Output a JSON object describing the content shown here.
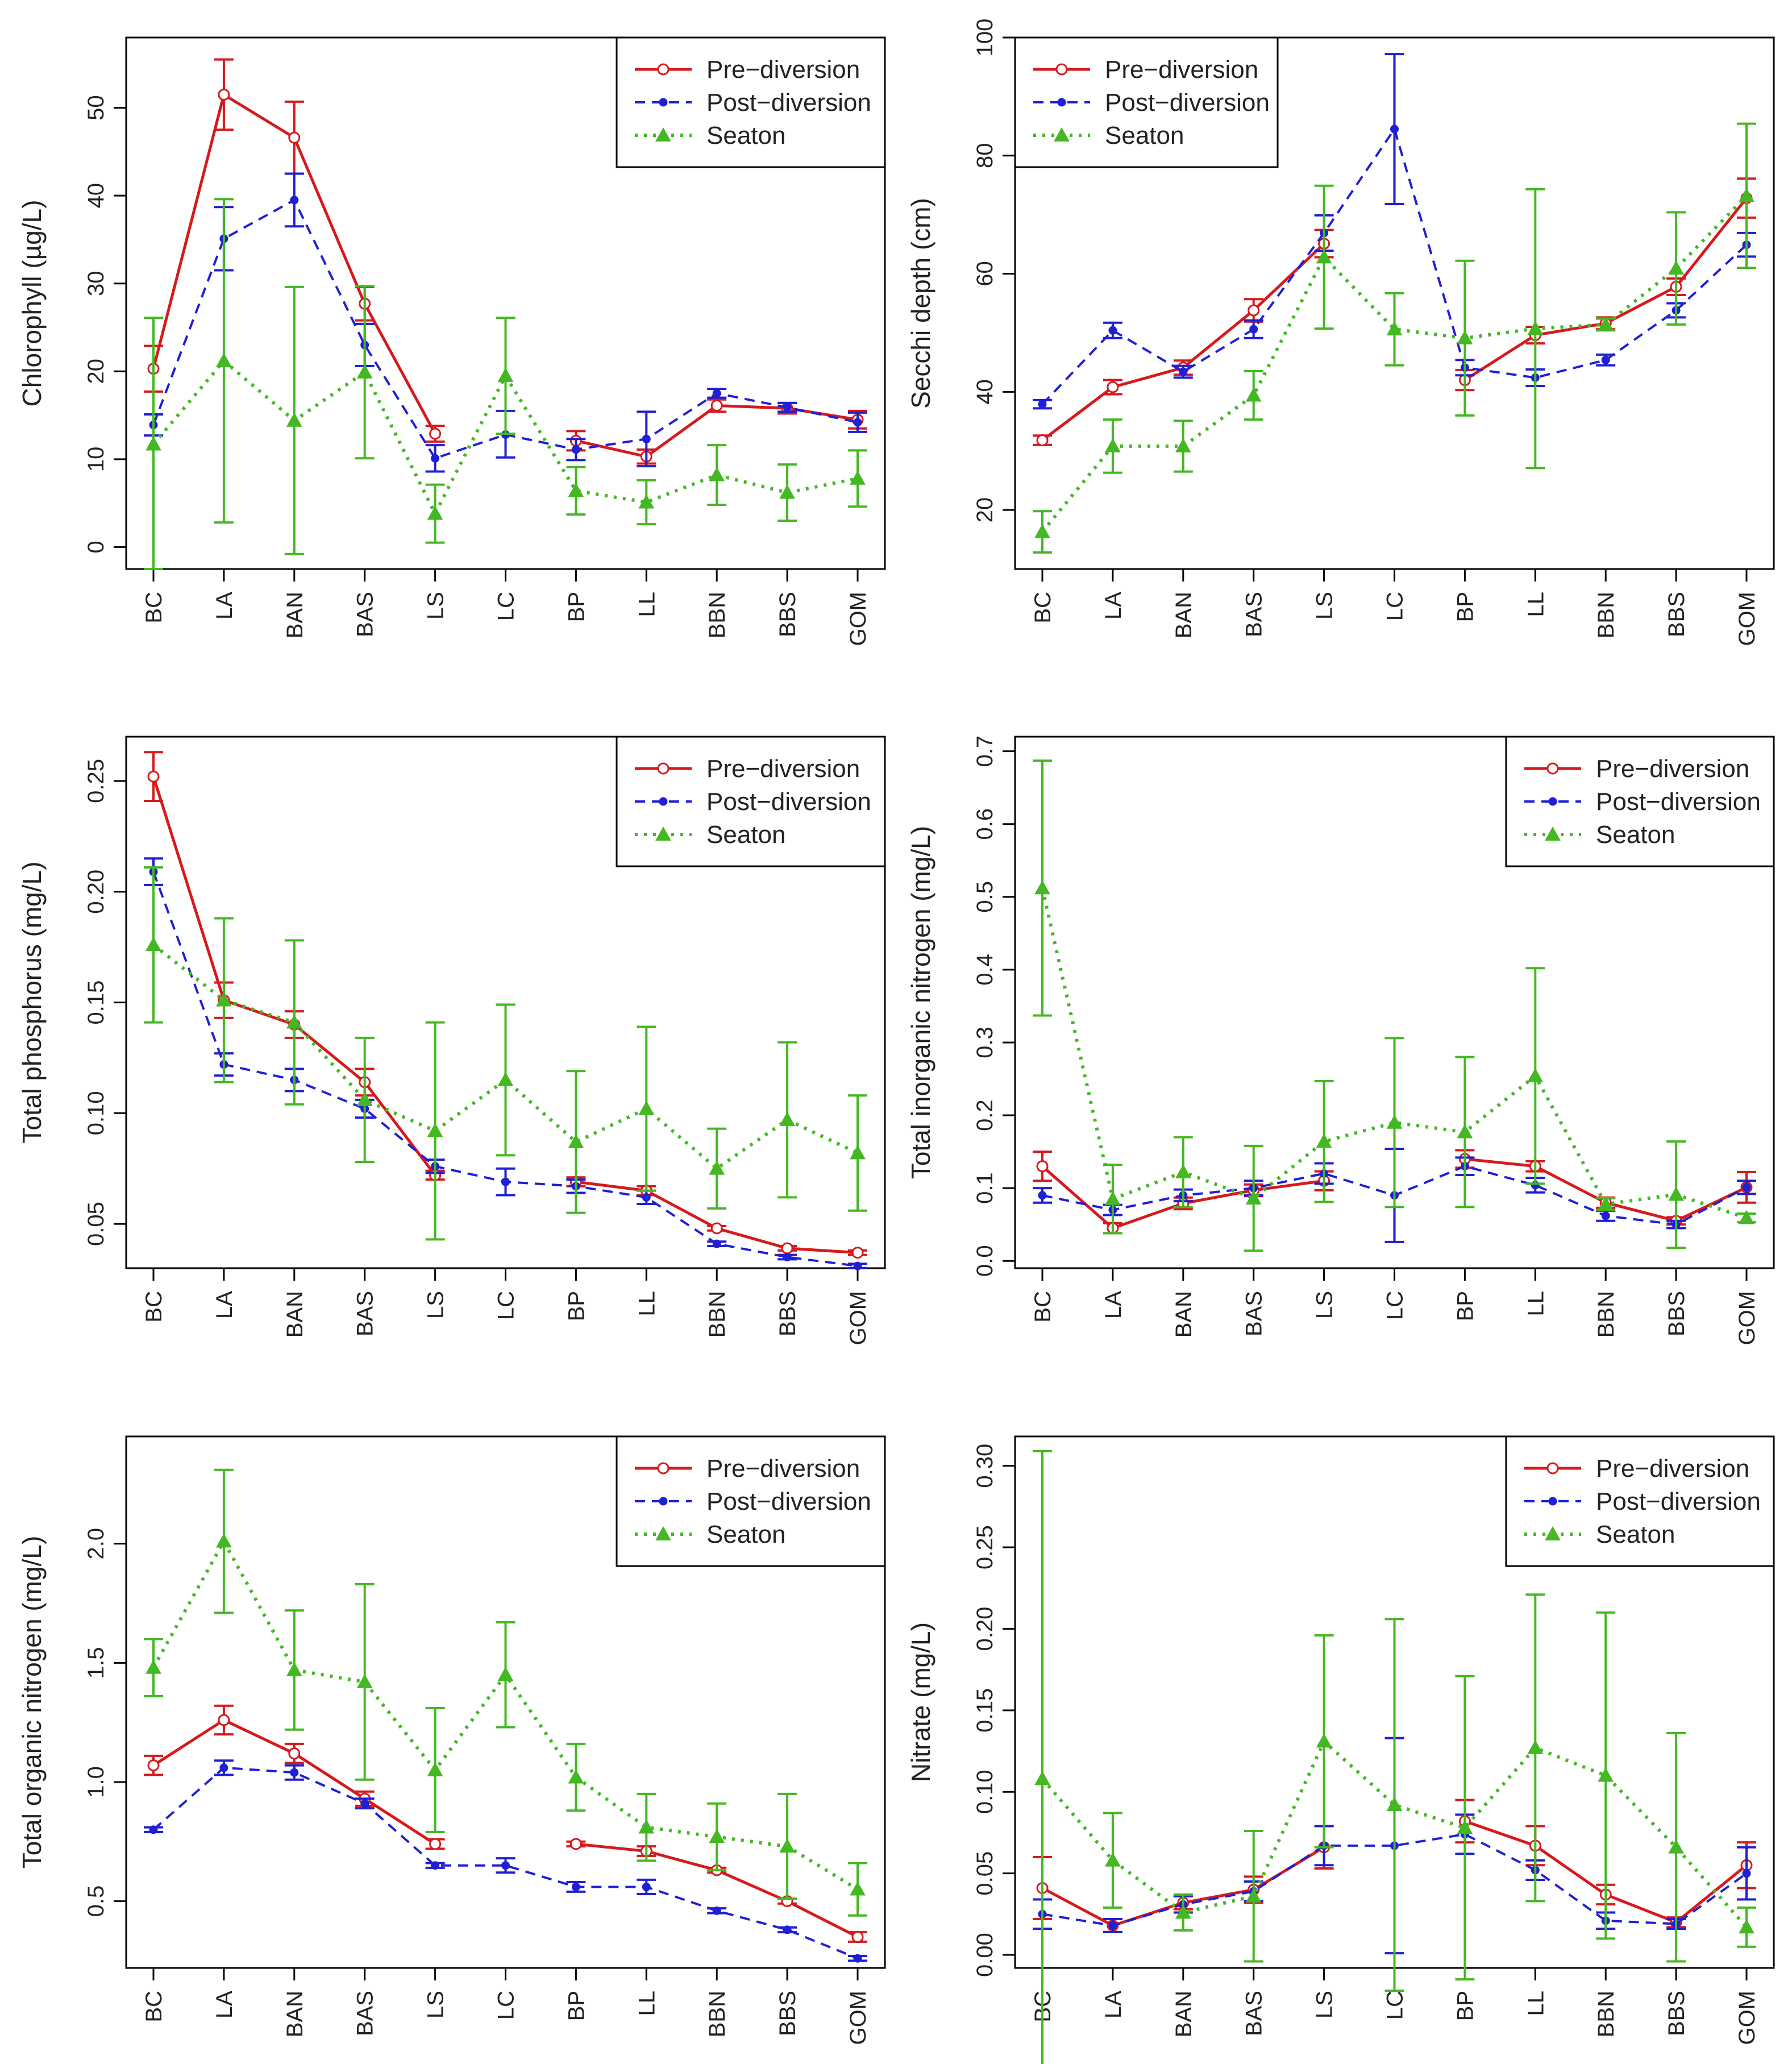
{
  "colors": {
    "pre": "#d7191c",
    "post": "#1f1fd6",
    "seaton": "#44b822"
  },
  "legend_labels": [
    "Pre−diversion",
    "Post−diversion",
    "Seaton"
  ],
  "chart_data": [
    {
      "id": "chlorophyll",
      "type": "line",
      "ylabel": "Chlorophyll (µg/L)",
      "categories": [
        "BC",
        "LA",
        "BAN",
        "BAS",
        "LS",
        "LC",
        "BP",
        "LL",
        "BBN",
        "BBS",
        "GOM"
      ],
      "ylim": [
        -2.5,
        58
      ],
      "yticks": [
        0,
        10,
        20,
        30,
        40,
        50
      ],
      "ytick_labels": [
        "0",
        "10",
        "20",
        "30",
        "40",
        "50"
      ],
      "legend_position": "top-right",
      "series": [
        {
          "name": "Pre−diversion",
          "key": "pre",
          "values": [
            20.3,
            51.5,
            46.6,
            27.7,
            12.9,
            null,
            12.1,
            10.3,
            16.1,
            15.8,
            14.5
          ],
          "lower": [
            17.7,
            47.5,
            42.5,
            25.8,
            12.0,
            null,
            11.0,
            9.5,
            15.4,
            15.2,
            13.5
          ],
          "upper": [
            22.9,
            55.5,
            50.7,
            29.6,
            13.8,
            null,
            13.2,
            11.1,
            16.8,
            16.4,
            15.5
          ]
        },
        {
          "name": "Post−diversion",
          "key": "post",
          "values": [
            13.9,
            35.1,
            39.5,
            23.0,
            10.1,
            12.8,
            11.1,
            12.3,
            17.5,
            15.9,
            14.2
          ],
          "lower": [
            12.7,
            31.5,
            36.5,
            20.6,
            8.6,
            10.2,
            9.9,
            9.2,
            17.0,
            15.4,
            13.1
          ],
          "upper": [
            15.1,
            38.7,
            42.5,
            25.4,
            11.6,
            15.5,
            12.3,
            15.4,
            18.0,
            16.4,
            15.3
          ]
        },
        {
          "name": "Seaton",
          "key": "seaton",
          "values": [
            11.7,
            21.2,
            14.4,
            19.9,
            3.8,
            19.5,
            6.4,
            5.1,
            8.2,
            6.2,
            7.8
          ],
          "lower": [
            -2.5,
            2.8,
            -0.8,
            10.1,
            0.5,
            12.9,
            3.7,
            2.6,
            4.8,
            3.0,
            4.6
          ],
          "upper": [
            26.1,
            39.6,
            29.6,
            29.7,
            7.1,
            26.1,
            9.1,
            7.6,
            11.6,
            9.4,
            11.0
          ]
        }
      ]
    },
    {
      "id": "secchi",
      "type": "line",
      "ylabel": "Secchi depth (cm)",
      "categories": [
        "BC",
        "LA",
        "BAN",
        "BAS",
        "LS",
        "LC",
        "BP",
        "LL",
        "BBN",
        "BBS",
        "GOM"
      ],
      "ylim": [
        10,
        100
      ],
      "yticks": [
        20,
        40,
        60,
        80,
        100
      ],
      "ytick_labels": [
        "20",
        "40",
        "60",
        "80",
        "100"
      ],
      "legend_position": "top-left",
      "series": [
        {
          "name": "Pre−diversion",
          "key": "pre",
          "values": [
            31.8,
            40.8,
            44.1,
            53.8,
            65.1,
            null,
            42.0,
            49.6,
            51.6,
            57.8,
            72.8
          ],
          "lower": [
            31.0,
            39.6,
            42.9,
            51.9,
            62.8,
            null,
            40.3,
            48.2,
            50.6,
            56.4,
            69.5
          ],
          "upper": [
            32.6,
            42.0,
            45.3,
            55.7,
            67.4,
            null,
            43.7,
            51.0,
            52.6,
            59.2,
            76.1
          ]
        },
        {
          "name": "Post−diversion",
          "key": "post",
          "values": [
            37.9,
            50.4,
            43.4,
            50.6,
            66.9,
            84.5,
            44.1,
            42.4,
            45.4,
            53.8,
            64.9
          ],
          "lower": [
            37.2,
            49.1,
            42.4,
            49.1,
            63.9,
            71.8,
            42.8,
            41.0,
            44.5,
            52.6,
            62.9
          ],
          "upper": [
            38.6,
            51.7,
            44.4,
            52.1,
            69.9,
            97.2,
            45.4,
            43.8,
            46.3,
            55.0,
            66.9
          ]
        },
        {
          "name": "Seaton",
          "key": "seaton",
          "values": [
            16.3,
            30.8,
            30.8,
            39.4,
            62.8,
            50.6,
            49.1,
            50.7,
            51.4,
            60.9,
            73.2
          ],
          "lower": [
            12.8,
            26.3,
            26.5,
            35.3,
            50.7,
            44.5,
            36.0,
            27.1,
            50.4,
            51.4,
            61.0
          ],
          "upper": [
            19.8,
            35.3,
            35.1,
            43.5,
            74.9,
            56.7,
            62.2,
            74.3,
            52.4,
            70.4,
            85.4
          ]
        }
      ]
    },
    {
      "id": "tp",
      "type": "line",
      "ylabel": "Total phosphorus (mg/L)",
      "categories": [
        "BC",
        "LA",
        "BAN",
        "BAS",
        "LS",
        "LC",
        "BP",
        "LL",
        "BBN",
        "BBS",
        "GOM"
      ],
      "ylim": [
        0.03,
        0.27
      ],
      "yticks": [
        0.05,
        0.1,
        0.15,
        0.2,
        0.25
      ],
      "ytick_labels": [
        "0.05",
        "0.10",
        "0.15",
        "0.20",
        "0.25"
      ],
      "legend_position": "top-right",
      "series": [
        {
          "name": "Pre−diversion",
          "key": "pre",
          "values": [
            0.252,
            0.151,
            0.14,
            0.114,
            0.072,
            null,
            0.069,
            0.065,
            0.048,
            0.039,
            0.037
          ],
          "lower": [
            0.241,
            0.143,
            0.134,
            0.108,
            0.07,
            null,
            0.067,
            0.063,
            0.047,
            0.038,
            0.036
          ],
          "upper": [
            0.263,
            0.159,
            0.146,
            0.12,
            0.074,
            null,
            0.071,
            0.067,
            0.049,
            0.04,
            0.038
          ]
        },
        {
          "name": "Post−diversion",
          "key": "post",
          "values": [
            0.209,
            0.122,
            0.115,
            0.102,
            0.076,
            0.069,
            0.067,
            0.062,
            0.041,
            0.035,
            0.031
          ],
          "lower": [
            0.203,
            0.117,
            0.11,
            0.098,
            0.073,
            0.063,
            0.064,
            0.059,
            0.04,
            0.034,
            0.03
          ],
          "upper": [
            0.215,
            0.127,
            0.12,
            0.106,
            0.079,
            0.075,
            0.07,
            0.065,
            0.042,
            0.036,
            0.032
          ]
        },
        {
          "name": "Seaton",
          "key": "seaton",
          "values": [
            0.176,
            0.151,
            0.141,
            0.106,
            0.092,
            0.115,
            0.087,
            0.102,
            0.075,
            0.097,
            0.082
          ],
          "lower": [
            0.141,
            0.114,
            0.104,
            0.078,
            0.043,
            0.081,
            0.055,
            0.065,
            0.057,
            0.062,
            0.056
          ],
          "upper": [
            0.211,
            0.188,
            0.178,
            0.134,
            0.141,
            0.149,
            0.119,
            0.139,
            0.093,
            0.132,
            0.108
          ]
        }
      ]
    },
    {
      "id": "tin",
      "type": "line",
      "ylabel": "Total inorganic nitrogen (mg/L)",
      "categories": [
        "BC",
        "LA",
        "BAN",
        "BAS",
        "LS",
        "LC",
        "BP",
        "LL",
        "BBN",
        "BBS",
        "GOM"
      ],
      "ylim": [
        -0.01,
        0.72
      ],
      "yticks": [
        0.0,
        0.1,
        0.2,
        0.3,
        0.4,
        0.5,
        0.6,
        0.7
      ],
      "ytick_labels": [
        "0.0",
        "0.1",
        "0.2",
        "0.3",
        "0.4",
        "0.5",
        "0.6",
        "0.7"
      ],
      "legend_position": "top-right",
      "series": [
        {
          "name": "Pre−diversion",
          "key": "pre",
          "values": [
            0.13,
            0.045,
            0.079,
            0.097,
            0.11,
            null,
            0.14,
            0.13,
            0.08,
            0.055,
            0.101
          ],
          "lower": [
            0.11,
            0.038,
            0.071,
            0.089,
            0.097,
            null,
            0.128,
            0.123,
            0.073,
            0.05,
            0.08
          ],
          "upper": [
            0.15,
            0.052,
            0.087,
            0.105,
            0.123,
            null,
            0.152,
            0.137,
            0.087,
            0.06,
            0.122
          ]
        },
        {
          "name": "Post−diversion",
          "key": "post",
          "values": [
            0.09,
            0.07,
            0.09,
            0.1,
            0.12,
            0.09,
            0.13,
            0.104,
            0.062,
            0.05,
            0.101
          ],
          "lower": [
            0.08,
            0.063,
            0.082,
            0.09,
            0.106,
            0.026,
            0.118,
            0.094,
            0.055,
            0.045,
            0.092
          ],
          "upper": [
            0.1,
            0.077,
            0.098,
            0.11,
            0.134,
            0.154,
            0.142,
            0.114,
            0.069,
            0.055,
            0.11
          ]
        },
        {
          "name": "Seaton",
          "key": "seaton",
          "values": [
            0.512,
            0.085,
            0.122,
            0.086,
            0.164,
            0.19,
            0.177,
            0.254,
            0.078,
            0.091,
            0.059
          ],
          "lower": [
            0.337,
            0.038,
            0.074,
            0.014,
            0.081,
            0.074,
            0.074,
            0.106,
            0.07,
            0.018,
            0.053
          ],
          "upper": [
            0.687,
            0.132,
            0.17,
            0.158,
            0.247,
            0.306,
            0.28,
            0.402,
            0.086,
            0.164,
            0.065
          ]
        }
      ]
    },
    {
      "id": "ton",
      "type": "line",
      "ylabel": "Total organic nitrogen (mg/L)",
      "categories": [
        "BC",
        "LA",
        "BAN",
        "BAS",
        "LS",
        "LC",
        "BP",
        "LL",
        "BBN",
        "BBS",
        "GOM"
      ],
      "ylim": [
        0.22,
        2.45
      ],
      "yticks": [
        0.5,
        1.0,
        1.5,
        2.0
      ],
      "ytick_labels": [
        "0.5",
        "1.0",
        "1.5",
        "2.0"
      ],
      "legend_position": "top-right",
      "series": [
        {
          "name": "Pre−diversion",
          "key": "pre",
          "values": [
            1.07,
            1.26,
            1.12,
            0.93,
            0.74,
            null,
            0.74,
            0.71,
            0.63,
            0.5,
            0.35
          ],
          "lower": [
            1.03,
            1.2,
            1.08,
            0.9,
            0.72,
            null,
            0.73,
            0.69,
            0.62,
            0.49,
            0.33
          ],
          "upper": [
            1.11,
            1.32,
            1.16,
            0.96,
            0.76,
            null,
            0.75,
            0.73,
            0.64,
            0.51,
            0.37
          ]
        },
        {
          "name": "Post−diversion",
          "key": "post",
          "values": [
            0.8,
            1.06,
            1.04,
            0.91,
            0.65,
            0.65,
            0.56,
            0.56,
            0.46,
            0.38,
            0.26
          ],
          "lower": [
            0.79,
            1.03,
            1.01,
            0.89,
            0.64,
            0.62,
            0.54,
            0.53,
            0.45,
            0.37,
            0.25
          ],
          "upper": [
            0.81,
            1.09,
            1.07,
            0.93,
            0.66,
            0.68,
            0.58,
            0.59,
            0.47,
            0.39,
            0.27
          ]
        },
        {
          "name": "Seaton",
          "key": "seaton",
          "values": [
            1.48,
            2.01,
            1.47,
            1.42,
            1.05,
            1.45,
            1.02,
            0.81,
            0.77,
            0.73,
            0.55
          ],
          "lower": [
            1.36,
            1.71,
            1.22,
            1.01,
            0.79,
            1.23,
            0.88,
            0.67,
            0.63,
            0.51,
            0.44
          ],
          "upper": [
            1.6,
            2.31,
            1.72,
            1.83,
            1.31,
            1.67,
            1.16,
            0.95,
            0.91,
            0.95,
            0.66
          ]
        }
      ]
    },
    {
      "id": "nitrate",
      "type": "line",
      "ylabel": "Nitrate (mg/L)",
      "categories": [
        "BC",
        "LA",
        "BAN",
        "BAS",
        "LS",
        "LC",
        "BP",
        "LL",
        "BBN",
        "BBS",
        "GOM"
      ],
      "ylim": [
        -0.008,
        0.318
      ],
      "yticks": [
        0.0,
        0.05,
        0.1,
        0.15,
        0.2,
        0.25,
        0.3
      ],
      "ytick_labels": [
        "0.00",
        "0.05",
        "0.10",
        "0.15",
        "0.20",
        "0.25",
        "0.30"
      ],
      "legend_position": "top-right",
      "series": [
        {
          "name": "Pre−diversion",
          "key": "pre",
          "values": [
            0.041,
            0.018,
            0.032,
            0.04,
            0.066,
            null,
            0.082,
            0.067,
            0.037,
            0.02,
            0.055
          ],
          "lower": [
            0.022,
            0.014,
            0.028,
            0.032,
            0.053,
            null,
            0.069,
            0.055,
            0.031,
            0.017,
            0.041
          ],
          "upper": [
            0.06,
            0.022,
            0.036,
            0.048,
            0.079,
            null,
            0.095,
            0.079,
            0.043,
            0.023,
            0.069
          ]
        },
        {
          "name": "Post−diversion",
          "key": "post",
          "values": [
            0.025,
            0.018,
            0.031,
            0.039,
            0.067,
            0.067,
            0.074,
            0.052,
            0.021,
            0.019,
            0.05
          ],
          "lower": [
            0.016,
            0.014,
            0.026,
            0.033,
            0.055,
            0.001,
            0.062,
            0.046,
            0.016,
            0.016,
            0.034
          ],
          "upper": [
            0.034,
            0.022,
            0.036,
            0.045,
            0.079,
            0.133,
            0.086,
            0.058,
            0.026,
            0.022,
            0.066
          ]
        },
        {
          "name": "Seaton",
          "key": "seaton",
          "values": [
            0.108,
            0.058,
            0.026,
            0.036,
            0.131,
            0.092,
            0.078,
            0.127,
            0.11,
            0.066,
            0.017
          ],
          "lower": [
            -0.093,
            0.029,
            0.015,
            -0.004,
            0.066,
            -0.022,
            -0.015,
            0.033,
            0.01,
            -0.004,
            0.005
          ],
          "upper": [
            0.309,
            0.087,
            0.037,
            0.076,
            0.196,
            0.206,
            0.171,
            0.221,
            0.21,
            0.136,
            0.029
          ]
        }
      ]
    }
  ]
}
